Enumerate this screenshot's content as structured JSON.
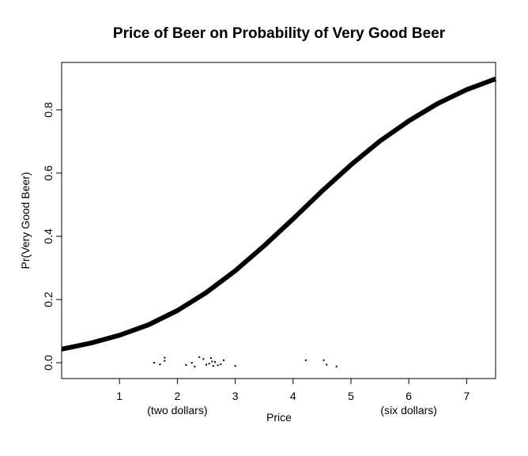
{
  "chart_data": {
    "type": "line",
    "title": "Price of Beer on Probability of Very Good Beer",
    "xlabel": "Price",
    "ylabel": "Pr(Very Good Beer)",
    "xlim": [
      0,
      7.5
    ],
    "ylim": [
      -0.05,
      0.95
    ],
    "x_ticks": [
      "1",
      "2",
      "3",
      "4",
      "5",
      "6",
      "7"
    ],
    "y_ticks": [
      "0.0",
      "0.2",
      "0.4",
      "0.6",
      "0.8"
    ],
    "x_annotations": [
      {
        "x": 2.0,
        "label": "(two dollars)"
      },
      {
        "x": 6.0,
        "label": "(six dollars)"
      }
    ],
    "curve": {
      "description_form": "logistic",
      "x": [
        0,
        0.5,
        1,
        1.5,
        2,
        2.5,
        3,
        3.5,
        4,
        4.5,
        5,
        5.5,
        6,
        6.5,
        7,
        7.5
      ],
      "y": [
        0.043,
        0.062,
        0.087,
        0.12,
        0.165,
        0.222,
        0.291,
        0.37,
        0.455,
        0.543,
        0.626,
        0.701,
        0.765,
        0.82,
        0.864,
        0.898
      ]
    },
    "rug_points": {
      "x": [
        1.6,
        1.7,
        1.78,
        1.78,
        2.15,
        2.25,
        2.3,
        2.38,
        2.45,
        2.5,
        2.55,
        2.58,
        2.6,
        2.62,
        2.65,
        2.7,
        2.75,
        2.8,
        3.0,
        4.22,
        4.53,
        4.58,
        4.75
      ],
      "y": [
        0.0,
        -0.005,
        0.006,
        0.016,
        -0.007,
        0.0,
        -0.012,
        0.018,
        0.012,
        -0.006,
        -0.003,
        0.015,
        0.004,
        -0.01,
        0.002,
        -0.008,
        -0.005,
        0.008,
        -0.01,
        0.008,
        0.008,
        -0.006,
        -0.012
      ]
    }
  }
}
